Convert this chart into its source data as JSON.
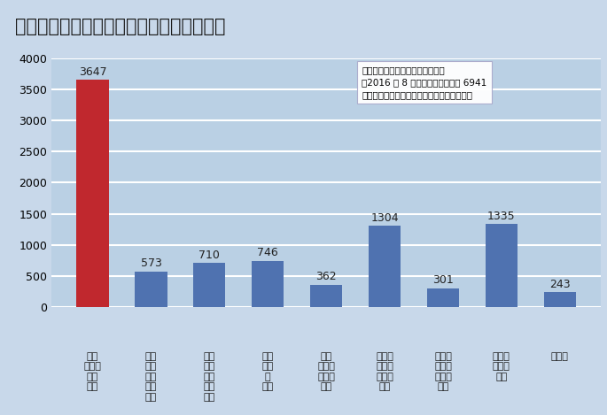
{
  "title": "図表３　企業の社会保険制度に関する要望",
  "values": [
    3647,
    573,
    710,
    746,
    362,
    1304,
    301,
    1335,
    243
  ],
  "bar_colors": [
    "#c0282e",
    "#4f72b0",
    "#4f72b0",
    "#4f72b0",
    "#4f72b0",
    "#4f72b0",
    "#4f72b0",
    "#4f72b0",
    "#4f72b0"
  ],
  "background_color": "#c8d8ea",
  "title_background": "#8fb4d4",
  "plot_background": "#bad0e4",
  "grid_color": "#ffffff",
  "ylim": [
    0,
    4000
  ],
  "yticks": [
    0,
    500,
    1000,
    1500,
    2000,
    2500,
    3000,
    3500,
    4000
  ],
  "annotation_text": "東京商工リサーチアンケート調査\n（2016 年 8 月実施）有効回答数 6941\nグラフ上の数字は、回答社数（複数回答可）"
}
